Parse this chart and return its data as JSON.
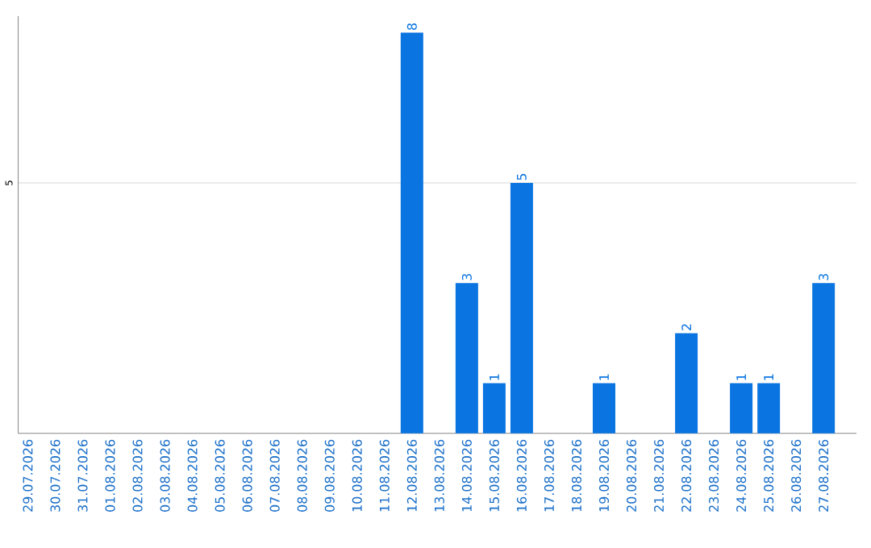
{
  "chart_data": {
    "type": "bar",
    "categories": [
      "29.07.2026",
      "30.07.2026",
      "31.07.2026",
      "01.08.2026",
      "02.08.2026",
      "03.08.2026",
      "04.08.2026",
      "05.08.2026",
      "06.08.2026",
      "07.08.2026",
      "08.08.2026",
      "09.08.2026",
      "10.08.2026",
      "11.08.2026",
      "12.08.2026",
      "13.08.2026",
      "14.08.2026",
      "15.08.2026",
      "16.08.2026",
      "17.08.2026",
      "18.08.2026",
      "19.08.2026",
      "20.08.2026",
      "21.08.2026",
      "22.08.2026",
      "23.08.2026",
      "24.08.2026",
      "25.08.2026",
      "26.08.2026",
      "27.08.2026"
    ],
    "values": [
      null,
      null,
      null,
      null,
      null,
      null,
      null,
      null,
      null,
      null,
      null,
      null,
      null,
      null,
      8,
      null,
      3,
      1,
      5,
      null,
      null,
      1,
      null,
      null,
      2,
      null,
      1,
      1,
      null,
      3
    ],
    "data_labels": true,
    "color": "#0a74e0",
    "ylim": [
      0,
      8.33
    ],
    "yticks": [
      5
    ],
    "grid": "y"
  }
}
